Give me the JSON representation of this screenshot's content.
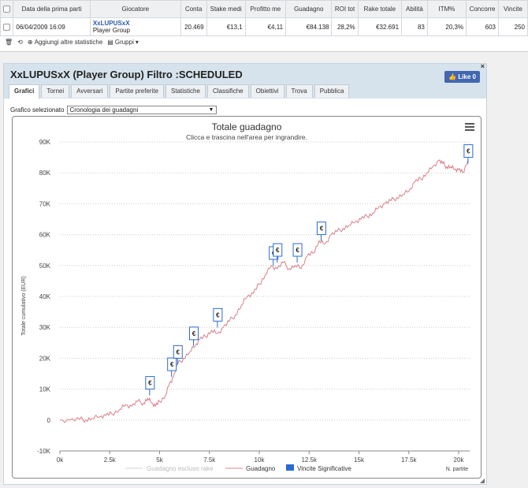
{
  "table": {
    "headers": [
      "Data della prima parti",
      "Giocatore",
      "Conta",
      "Stake medi",
      "Profitto me",
      "Guadagno",
      "ROI tot",
      "Rake totale",
      "Abilità",
      "ITM%",
      "Concorre",
      "Vincite"
    ],
    "row": {
      "date": "06/04/2009 16:09",
      "player": "XxLUPUSxX",
      "player_sub": "Player Group",
      "values": [
        "20.469",
        "€13,1",
        "€4,11",
        "€84.138",
        "28,2%",
        "€32.691",
        "83",
        "20,3%",
        "603",
        "250"
      ]
    }
  },
  "toolbar": {
    "add_stats": "Aggiungi altre statistiche",
    "groups": "Gruppi"
  },
  "panel": {
    "title": "XxLUPUSxX (Player Group) Filtro :SCHEDULED",
    "like": "Like 0",
    "close": "×",
    "tabs": [
      "Grafici",
      "Tornei",
      "Avversari",
      "Partite preferite",
      "Statistiche",
      "Classifiche",
      "Obiettivi",
      "Trova",
      "Pubblica"
    ],
    "selected_label": "Grafico selezionato",
    "selected_value": "Cronologia dei guadagni"
  },
  "chart_data": {
    "type": "line",
    "title": "Totale guadagno",
    "subtitle": "Clicca e trascina nell'area per ingrandire.",
    "ylabel": "Totale cumulativo (EUR)",
    "xlabel": "N. partite",
    "ylim": [
      -10000,
      90000
    ],
    "xlim": [
      0,
      20469
    ],
    "y_ticks": [
      "-10K",
      "0",
      "10K",
      "20K",
      "30K",
      "40K",
      "50K",
      "60K",
      "70K",
      "80K",
      "90K"
    ],
    "y_tick_values": [
      -10000,
      0,
      10000,
      20000,
      30000,
      40000,
      50000,
      60000,
      70000,
      80000,
      90000
    ],
    "x_ticks": [
      "0k",
      "2.5k",
      "5k",
      "7.5k",
      "10k",
      "12.5k",
      "15k",
      "17.5k",
      "20k"
    ],
    "x_tick_values": [
      0,
      2500,
      5000,
      7500,
      10000,
      12500,
      15000,
      17500,
      20000
    ],
    "legend": [
      "Guadagno escluso rake",
      "Guadagno",
      "Vincite Significative"
    ],
    "colors": {
      "line": "#d9808a",
      "excl": "#d3d3d3",
      "flag": "#2a6bd1"
    },
    "series": [
      {
        "name": "Guadagno",
        "x": [
          0,
          500,
          1000,
          1300,
          1600,
          2000,
          2300,
          2600,
          3000,
          3300,
          3600,
          3900,
          4200,
          4400,
          4600,
          4800,
          5000,
          5300,
          5500,
          5700,
          5900,
          6200,
          6500,
          6800,
          7000,
          7300,
          7600,
          7900,
          8200,
          8500,
          8800,
          9100,
          9400,
          9700,
          10000,
          10300,
          10600,
          10900,
          11200,
          11500,
          11800,
          12100,
          12400,
          12700,
          13000,
          13300,
          13600,
          13900,
          14200,
          14500,
          14800,
          15100,
          15400,
          15700,
          16000,
          16300,
          16600,
          16900,
          17200,
          17500,
          17800,
          18100,
          18400,
          18700,
          19000,
          19200,
          19400,
          19600,
          19800,
          20000,
          20200,
          20469
        ],
        "values": [
          0,
          0,
          200,
          100,
          500,
          1000,
          1500,
          2000,
          3500,
          5000,
          4500,
          6000,
          5500,
          7000,
          5500,
          4500,
          6000,
          8000,
          12000,
          14000,
          18000,
          20000,
          22000,
          24000,
          26000,
          27000,
          29000,
          28000,
          30000,
          32000,
          34000,
          37000,
          40000,
          41000,
          44000,
          47000,
          50000,
          49000,
          51000,
          49000,
          50000,
          49000,
          53000,
          54000,
          58000,
          57000,
          60000,
          61000,
          62000,
          63000,
          64000,
          65000,
          66000,
          67000,
          69000,
          70000,
          71000,
          72000,
          73000,
          74000,
          77000,
          78000,
          80000,
          82000,
          84000,
          83000,
          82000,
          82000,
          81000,
          81000,
          80000,
          84138
        ]
      },
      {
        "name": "Vincite Significative",
        "x": [
          4500,
          5600,
          5900,
          6700,
          7900,
          10700,
          10900,
          11900,
          13100,
          20469
        ],
        "values": [
          10000,
          16000,
          20000,
          26000,
          32000,
          52000,
          53000,
          53000,
          60000,
          85000
        ]
      }
    ]
  }
}
